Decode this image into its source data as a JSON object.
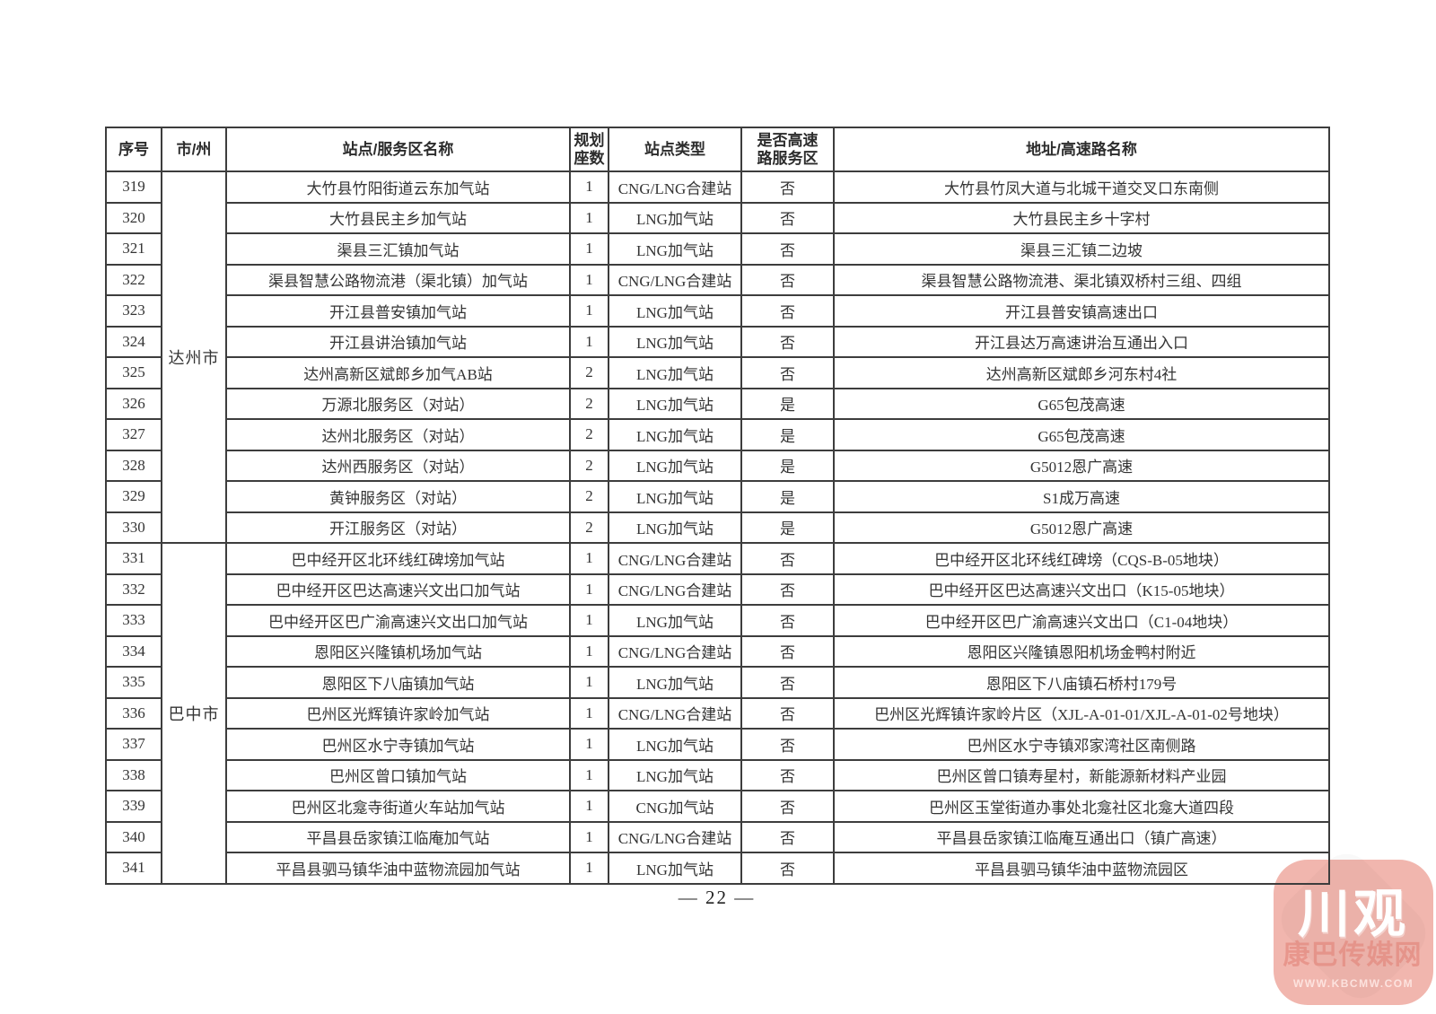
{
  "table": {
    "headers": {
      "index": "序号",
      "city": "市/州",
      "name": "站点/服务区名称",
      "seats": "规划\n座数",
      "type": "站点类型",
      "highway": "是否高速\n路服务区",
      "address": "地址/高速路名称"
    },
    "groups": [
      {
        "city": "达州市",
        "rows": [
          {
            "id": "319",
            "name": "大竹县竹阳街道云东加气站",
            "seats": "1",
            "type": "CNG/LNG合建站",
            "highway": "否",
            "address": "大竹县竹凤大道与北城干道交叉口东南侧"
          },
          {
            "id": "320",
            "name": "大竹县民主乡加气站",
            "seats": "1",
            "type": "LNG加气站",
            "highway": "否",
            "address": "大竹县民主乡十字村"
          },
          {
            "id": "321",
            "name": "渠县三汇镇加气站",
            "seats": "1",
            "type": "LNG加气站",
            "highway": "否",
            "address": "渠县三汇镇二边坡"
          },
          {
            "id": "322",
            "name": "渠县智慧公路物流港（渠北镇）加气站",
            "seats": "1",
            "type": "CNG/LNG合建站",
            "highway": "否",
            "address": "渠县智慧公路物流港、渠北镇双桥村三组、四组"
          },
          {
            "id": "323",
            "name": "开江县普安镇加气站",
            "seats": "1",
            "type": "LNG加气站",
            "highway": "否",
            "address": "开江县普安镇高速出口"
          },
          {
            "id": "324",
            "name": "开江县讲治镇加气站",
            "seats": "1",
            "type": "LNG加气站",
            "highway": "否",
            "address": "开江县达万高速讲治互通出入口"
          },
          {
            "id": "325",
            "name": "达州高新区斌郎乡加气AB站",
            "seats": "2",
            "type": "LNG加气站",
            "highway": "否",
            "address": "达州高新区斌郎乡河东村4社"
          },
          {
            "id": "326",
            "name": "万源北服务区（对站）",
            "seats": "2",
            "type": "LNG加气站",
            "highway": "是",
            "address": "G65包茂高速"
          },
          {
            "id": "327",
            "name": "达州北服务区（对站）",
            "seats": "2",
            "type": "LNG加气站",
            "highway": "是",
            "address": "G65包茂高速"
          },
          {
            "id": "328",
            "name": "达州西服务区（对站）",
            "seats": "2",
            "type": "LNG加气站",
            "highway": "是",
            "address": "G5012恩广高速"
          },
          {
            "id": "329",
            "name": "黄钟服务区（对站）",
            "seats": "2",
            "type": "LNG加气站",
            "highway": "是",
            "address": "S1成万高速"
          },
          {
            "id": "330",
            "name": "开江服务区（对站）",
            "seats": "2",
            "type": "LNG加气站",
            "highway": "是",
            "address": "G5012恩广高速"
          }
        ]
      },
      {
        "city": "巴中市",
        "rows": [
          {
            "id": "331",
            "name": "巴中经开区北环线红碑塝加气站",
            "seats": "1",
            "type": "CNG/LNG合建站",
            "highway": "否",
            "address": "巴中经开区北环线红碑塝（CQS-B-05地块）"
          },
          {
            "id": "332",
            "name": "巴中经开区巴达高速兴文出口加气站",
            "seats": "1",
            "type": "CNG/LNG合建站",
            "highway": "否",
            "address": "巴中经开区巴达高速兴文出口（K15-05地块）"
          },
          {
            "id": "333",
            "name": "巴中经开区巴广渝高速兴文出口加气站",
            "seats": "1",
            "type": "LNG加气站",
            "highway": "否",
            "address": "巴中经开区巴广渝高速兴文出口（C1-04地块）"
          },
          {
            "id": "334",
            "name": "恩阳区兴隆镇机场加气站",
            "seats": "1",
            "type": "CNG/LNG合建站",
            "highway": "否",
            "address": "恩阳区兴隆镇恩阳机场金鸭村附近"
          },
          {
            "id": "335",
            "name": "恩阳区下八庙镇加气站",
            "seats": "1",
            "type": "LNG加气站",
            "highway": "否",
            "address": "恩阳区下八庙镇石桥村179号"
          },
          {
            "id": "336",
            "name": "巴州区光辉镇许家岭加气站",
            "seats": "1",
            "type": "CNG/LNG合建站",
            "highway": "否",
            "address": "巴州区光辉镇许家岭片区（XJL-A-01-01/XJL-A-01-02号地块）"
          },
          {
            "id": "337",
            "name": "巴州区水宁寺镇加气站",
            "seats": "1",
            "type": "LNG加气站",
            "highway": "否",
            "address": "巴州区水宁寺镇邓家湾社区南侧路"
          },
          {
            "id": "338",
            "name": "巴州区曾口镇加气站",
            "seats": "1",
            "type": "LNG加气站",
            "highway": "否",
            "address": "巴州区曾口镇寿星村，新能源新材料产业园"
          },
          {
            "id": "339",
            "name": "巴州区北龛寺街道火车站加气站",
            "seats": "1",
            "type": "CNG加气站",
            "highway": "否",
            "address": "巴州区玉堂街道办事处北龛社区北龛大道四段"
          },
          {
            "id": "340",
            "name": "平昌县岳家镇江临庵加气站",
            "seats": "1",
            "type": "CNG/LNG合建站",
            "highway": "否",
            "address": "平昌县岳家镇江临庵互通出口（镇广高速）"
          },
          {
            "id": "341",
            "name": "平昌县驷马镇华油中蓝物流园加气站",
            "seats": "1",
            "type": "LNG加气站",
            "highway": "否",
            "address": "平昌县驷马镇华油中蓝物流园区"
          }
        ]
      }
    ]
  },
  "footer": {
    "page_number": "— 22 —"
  },
  "watermark": {
    "title": "川观",
    "subtitle": "康巴传媒网",
    "url": "WWW.KBCMW.COM",
    "bg_color": "#f1b6ae"
  }
}
